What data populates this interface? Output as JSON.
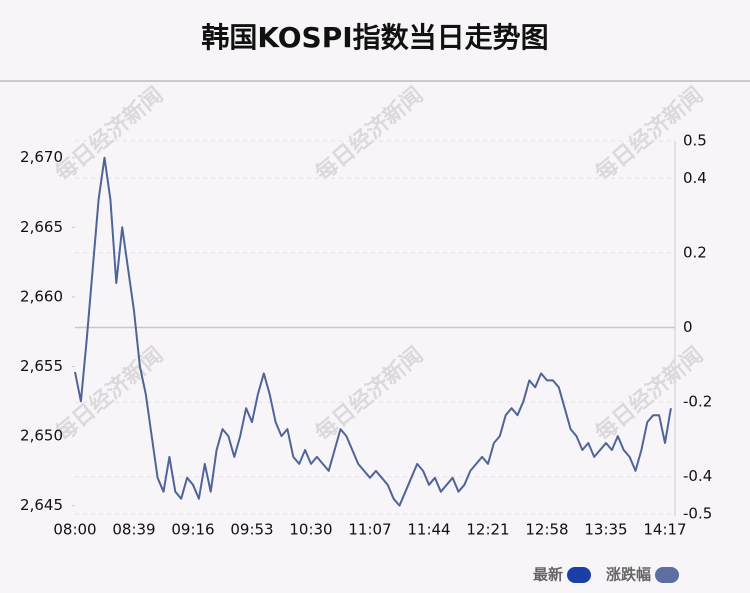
{
  "chart_data": {
    "type": "line",
    "title": "韩国KOSPI指数当日走势图",
    "watermark": "每日经济新闻",
    "categories": [
      "08:00",
      null,
      null,
      null,
      null,
      null,
      null,
      null,
      null,
      null,
      "08:39",
      null,
      null,
      null,
      null,
      null,
      null,
      null,
      null,
      null,
      "09:16",
      null,
      null,
      null,
      null,
      null,
      null,
      null,
      null,
      null,
      "09:53",
      null,
      null,
      null,
      null,
      null,
      null,
      null,
      null,
      null,
      "10:30",
      null,
      null,
      null,
      null,
      null,
      null,
      null,
      null,
      null,
      "11:07",
      null,
      null,
      null,
      null,
      null,
      null,
      null,
      null,
      null,
      "11:44",
      null,
      null,
      null,
      null,
      null,
      null,
      null,
      null,
      null,
      "12:21",
      null,
      null,
      null,
      null,
      null,
      null,
      null,
      null,
      null,
      "12:58",
      null,
      null,
      null,
      null,
      null,
      null,
      null,
      null,
      null,
      "13:35",
      null,
      null,
      null,
      null,
      null,
      null,
      null,
      null,
      null,
      "14:17",
      null
    ],
    "series": [
      {
        "color": "#4f6498",
        "values": [
          2654.6,
          2652.5,
          2657,
          2662,
          2667,
          2670,
          2667,
          2661,
          2665,
          2662,
          2659,
          2655,
          2653,
          2650,
          2647,
          2646,
          2648.5,
          2646,
          2645.5,
          2647,
          2646.5,
          2645.5,
          2648,
          2646,
          2649,
          2650.5,
          2650,
          2648.5,
          2650,
          2652,
          2651,
          2653,
          2654.5,
          2653,
          2651,
          2650,
          2650.5,
          2648.5,
          2648,
          2649,
          2648,
          2648.5,
          2648,
          2647.5,
          2649,
          2650.5,
          2650,
          2649,
          2648,
          2647.5,
          2647,
          2647.5,
          2647,
          2646.5,
          2645.5,
          2645,
          2646,
          2647,
          2648,
          2647.5,
          2646.5,
          2647,
          2646,
          2646.5,
          2647,
          2646,
          2646.5,
          2647.5,
          2648,
          2648.5,
          2648,
          2649.5,
          2650,
          2651.5,
          2652,
          2651.5,
          2652.5,
          2654,
          2653.5,
          2654.5,
          2654,
          2654,
          2653.5,
          2652,
          2650.5,
          2650,
          2649,
          2649.5,
          2648.5,
          2649,
          2649.5,
          2649,
          2650,
          2649,
          2648.5,
          2647.5,
          2649,
          2651,
          2651.5,
          2651.5,
          2649.5,
          2652
        ]
      }
    ],
    "ylim": [
      2644.4,
      2671.2
    ],
    "yticks": [
      {
        "value": 2645,
        "label": "2,645"
      },
      {
        "value": 2650,
        "label": "2,650"
      },
      {
        "value": 2655,
        "label": "2,655"
      },
      {
        "value": 2660,
        "label": "2,660"
      },
      {
        "value": 2665,
        "label": "2,665"
      },
      {
        "value": 2670,
        "label": "2,670"
      }
    ],
    "y2lim": [
      -0.5,
      0.5
    ],
    "y2ticks": [
      0.5,
      0.4,
      0.2,
      0,
      -0.2,
      -0.4,
      -0.5
    ],
    "grid": true,
    "legend": [
      {
        "name": "最新",
        "color": "#1b3fa6"
      },
      {
        "name": "涨跌幅",
        "color": "#5b6fa2"
      }
    ]
  }
}
